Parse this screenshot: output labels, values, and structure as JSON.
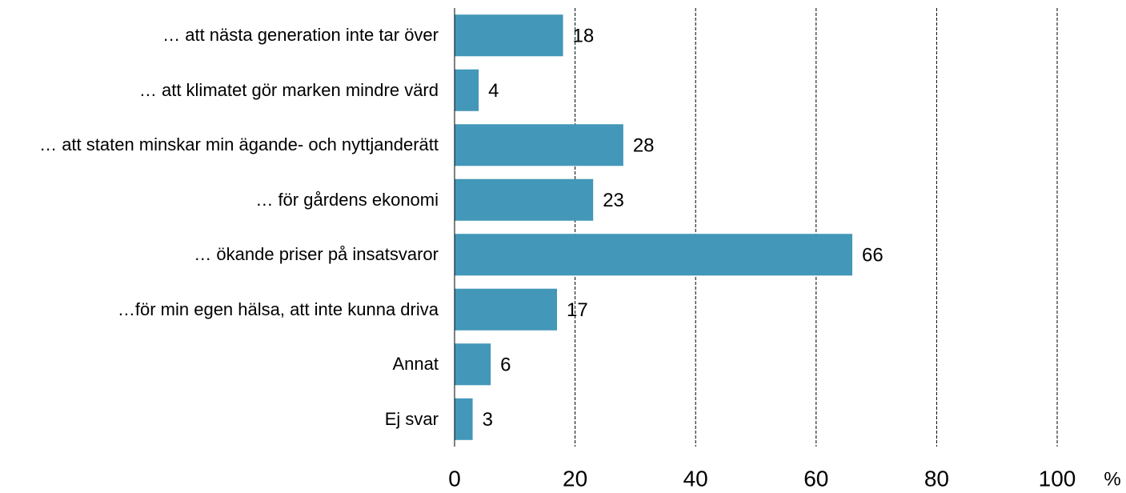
{
  "chart_data": {
    "type": "barh",
    "categories": [
      "… att nästa generation inte tar över",
      "… att klimatet gör marken mindre värd",
      "… att staten minskar min ägande- och nyttjanderätt",
      "… för gårdens ekonomi",
      "… ökande priser på insatsvaror",
      "…för min egen hälsa, att inte kunna driva",
      "Annat",
      "Ej svar"
    ],
    "values": [
      18,
      4,
      28,
      23,
      66,
      17,
      6,
      3
    ],
    "color": "#4397b9",
    "xlabel": "%",
    "xlim": [
      0,
      100
    ],
    "xticks": [
      0,
      20,
      40,
      60,
      80,
      100
    ],
    "grid": true
  }
}
